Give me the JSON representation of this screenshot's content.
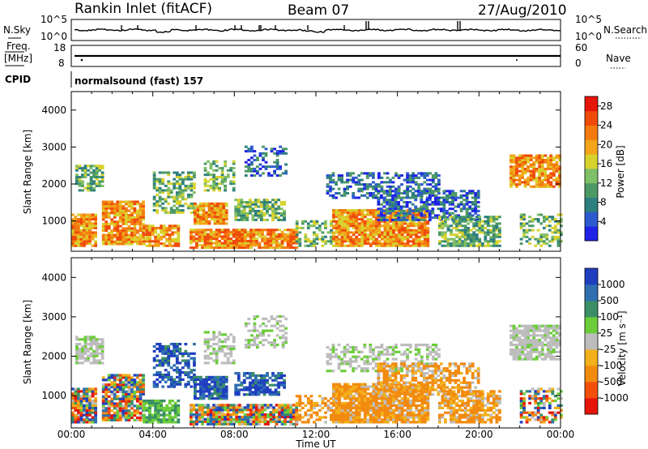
{
  "header": {
    "station": "Rankin Inlet (fitACF)",
    "beam": "Beam 07",
    "date": "27/Aug/2010"
  },
  "summary": {
    "nsky_label": "N.Sky",
    "nsky_ticks": [
      "10^5",
      "10^0"
    ],
    "nsearch_label": "N.Search",
    "nsearch_ticks": [
      "10^5",
      "10^0"
    ],
    "freq_label_1": "Freq.",
    "freq_label_2": "[MHz]",
    "freq_ticks": [
      "18",
      "8"
    ],
    "nave_label": "Nave",
    "nave_ticks": [
      "60",
      "0"
    ],
    "cpid_label": "CPID",
    "cpid_value": "normalsound (fast) 157"
  },
  "chart_data": [
    {
      "type": "heatmap",
      "name": "power",
      "ylabel": "Slant Range [km]",
      "yticks": [
        1000,
        2000,
        3000,
        4000
      ],
      "ylim": [
        180,
        4500
      ],
      "xticks": [
        "00:00",
        "04:00",
        "08:00",
        "12:00",
        "16:00",
        "20:00",
        "00:00"
      ],
      "xlim_hours": [
        0,
        24
      ],
      "colorbar": {
        "label": "Power [dB]",
        "ticks": [
          4,
          8,
          12,
          16,
          20,
          24,
          28
        ],
        "range": [
          0,
          30
        ],
        "colors": [
          "#1f22e6",
          "#2e5ad0",
          "#2e7f7f",
          "#4d9966",
          "#7fbf66",
          "#d8d22e",
          "#f2a51a",
          "#f27a0f",
          "#ef4a0a",
          "#e6150a"
        ]
      }
    },
    {
      "type": "heatmap",
      "name": "velocity",
      "ylabel": "Slant Range [km]",
      "yticks": [
        1000,
        2000,
        3000,
        4000
      ],
      "ylim": [
        180,
        4500
      ],
      "xticks": [
        "00:00",
        "04:00",
        "08:00",
        "12:00",
        "16:00",
        "20:00",
        "00:00"
      ],
      "xlabel": "Time UT",
      "xlim_hours": [
        0,
        24
      ],
      "colorbar": {
        "label": "Velocity [m s⁻¹]",
        "ticks": [
          "1000",
          "500",
          "100",
          "25",
          "-25",
          "-100",
          "-500",
          "-1000"
        ],
        "colors": [
          "#1f3fbf",
          "#2f6fb0",
          "#3a8f66",
          "#6ccd3a",
          "#bdbdbd",
          "#f2b01a",
          "#f28a0f",
          "#f2500a",
          "#e6150a"
        ]
      }
    }
  ]
}
